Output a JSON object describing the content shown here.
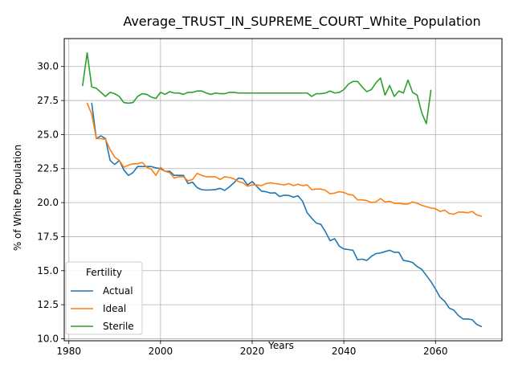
{
  "chart_data": {
    "type": "line",
    "title": "Average_TRUST_IN_SUPREME_COURT_White_Population",
    "xlabel": "Years",
    "ylabel": "% of White Population",
    "xlim": [
      1979,
      2074.5
    ],
    "ylim": [
      9.85,
      32.05
    ],
    "xticks": [
      1980,
      2000,
      2020,
      2040,
      2060
    ],
    "yticks": [
      10.0,
      12.5,
      15.0,
      17.5,
      20.0,
      22.5,
      25.0,
      27.5,
      30.0
    ],
    "grid": true,
    "legend": {
      "title": "Fertility",
      "position": "lower-left"
    },
    "series": [
      {
        "name": "Actual",
        "color": "#1f77b4",
        "x": [
          1985,
          1986,
          1987,
          1988,
          1989,
          1990,
          1991,
          1992,
          1993,
          1994,
          1995,
          1996,
          1997,
          1998,
          1999,
          2000,
          2001,
          2002,
          2003,
          2004,
          2005,
          2006,
          2007,
          2008,
          2009,
          2010,
          2011,
          2012,
          2013,
          2014,
          2015,
          2016,
          2017,
          2018,
          2019,
          2020,
          2021,
          2022,
          2023,
          2024,
          2025,
          2026,
          2027,
          2028,
          2029,
          2030,
          2031,
          2032,
          2033,
          2034,
          2035,
          2036,
          2037,
          2038,
          2039,
          2040,
          2041,
          2042,
          2043,
          2044,
          2045,
          2046,
          2047,
          2048,
          2049,
          2050,
          2051,
          2052,
          2053,
          2054,
          2055,
          2056,
          2057,
          2058,
          2059,
          2060,
          2061,
          2062,
          2063,
          2064,
          2065,
          2066,
          2067,
          2068,
          2069,
          2070
        ],
        "values": [
          27.3,
          24.7,
          24.9,
          24.7,
          23.1,
          22.8,
          23.1,
          22.4,
          22.0,
          22.2,
          22.65,
          22.65,
          22.65,
          22.65,
          22.55,
          22.5,
          22.3,
          22.3,
          22.0,
          22.0,
          22.0,
          21.4,
          21.5,
          21.1,
          20.95,
          20.92,
          20.93,
          20.96,
          21.05,
          20.9,
          21.15,
          21.45,
          21.8,
          21.75,
          21.3,
          21.55,
          21.2,
          20.85,
          20.8,
          20.7,
          20.72,
          20.45,
          20.55,
          20.52,
          20.4,
          20.5,
          20.1,
          19.25,
          18.85,
          18.5,
          18.4,
          17.85,
          17.2,
          17.35,
          16.8,
          16.6,
          16.55,
          16.5,
          15.8,
          15.85,
          15.75,
          16.05,
          16.25,
          16.3,
          16.4,
          16.5,
          16.35,
          16.35,
          15.75,
          15.7,
          15.6,
          15.3,
          15.1,
          14.65,
          14.2,
          13.65,
          13.05,
          12.75,
          12.25,
          12.1,
          11.7,
          11.45,
          11.45,
          11.4,
          11.05,
          10.9
        ]
      },
      {
        "name": "Ideal",
        "color": "#ff7f0e",
        "x": [
          1984,
          1985,
          1986,
          1987,
          1988,
          1989,
          1990,
          1991,
          1992,
          1993,
          1994,
          1995,
          1996,
          1997,
          1998,
          1999,
          2000,
          2001,
          2002,
          2003,
          2004,
          2005,
          2006,
          2007,
          2008,
          2009,
          2010,
          2011,
          2012,
          2013,
          2014,
          2015,
          2016,
          2017,
          2018,
          2019,
          2020,
          2021,
          2022,
          2023,
          2024,
          2025,
          2026,
          2027,
          2028,
          2029,
          2030,
          2031,
          2032,
          2033,
          2034,
          2035,
          2036,
          2037,
          2038,
          2039,
          2040,
          2041,
          2042,
          2043,
          2044,
          2045,
          2046,
          2047,
          2048,
          2049,
          2050,
          2051,
          2052,
          2053,
          2054,
          2055,
          2056,
          2057,
          2058,
          2059,
          2060,
          2061,
          2062,
          2063,
          2064,
          2065,
          2066,
          2067,
          2068,
          2069,
          2070
        ],
        "values": [
          27.3,
          26.5,
          24.7,
          24.7,
          24.65,
          23.9,
          23.35,
          23.1,
          22.6,
          22.75,
          22.85,
          22.85,
          22.95,
          22.6,
          22.45,
          22.0,
          22.6,
          22.3,
          22.2,
          21.8,
          21.9,
          21.9,
          21.6,
          21.7,
          22.15,
          22.0,
          21.9,
          21.9,
          21.9,
          21.7,
          21.9,
          21.85,
          21.75,
          21.55,
          21.45,
          21.2,
          21.3,
          21.3,
          21.25,
          21.4,
          21.45,
          21.4,
          21.35,
          21.3,
          21.4,
          21.25,
          21.35,
          21.25,
          21.3,
          20.95,
          21.0,
          21.0,
          20.9,
          20.65,
          20.7,
          20.8,
          20.75,
          20.6,
          20.55,
          20.2,
          20.2,
          20.15,
          20.0,
          20.05,
          20.3,
          20.05,
          20.1,
          19.95,
          19.95,
          19.9,
          19.9,
          20.05,
          19.95,
          19.8,
          19.7,
          19.6,
          19.55,
          19.35,
          19.45,
          19.2,
          19.15,
          19.3,
          19.3,
          19.25,
          19.35,
          19.1,
          19.0
        ]
      },
      {
        "name": "Sterile",
        "color": "#2ca02c",
        "x": [
          1983,
          1984,
          1985,
          1986,
          1987,
          1988,
          1989,
          1990,
          1991,
          1992,
          1993,
          1994,
          1995,
          1996,
          1997,
          1998,
          1999,
          2000,
          2001,
          2002,
          2003,
          2004,
          2005,
          2006,
          2007,
          2008,
          2009,
          2010,
          2011,
          2012,
          2013,
          2014,
          2015,
          2016,
          2017,
          2018,
          2019,
          2020,
          2021,
          2022,
          2023,
          2024,
          2025,
          2026,
          2027,
          2028,
          2029,
          2030,
          2031,
          2032,
          2033,
          2034,
          2035,
          2036,
          2037,
          2038,
          2039,
          2040,
          2041,
          2042,
          2043,
          2044,
          2045,
          2046,
          2047,
          2048,
          2049,
          2050,
          2051,
          2052,
          2053,
          2054,
          2055,
          2056,
          2057,
          2058,
          2059
        ],
        "values": [
          28.6,
          31.0,
          28.5,
          28.4,
          28.1,
          27.8,
          28.1,
          28.0,
          27.8,
          27.35,
          27.3,
          27.35,
          27.8,
          28.0,
          27.95,
          27.75,
          27.65,
          28.1,
          27.95,
          28.15,
          28.05,
          28.05,
          27.95,
          28.1,
          28.1,
          28.2,
          28.2,
          28.05,
          27.95,
          28.05,
          28.0,
          28.0,
          28.1,
          28.1,
          28.05,
          28.05,
          28.05,
          28.05,
          28.05,
          28.05,
          28.05,
          28.05,
          28.05,
          28.05,
          28.05,
          28.05,
          28.05,
          28.05,
          28.05,
          28.05,
          27.8,
          28.0,
          28.0,
          28.05,
          28.2,
          28.05,
          28.1,
          28.3,
          28.7,
          28.9,
          28.9,
          28.5,
          28.15,
          28.3,
          28.8,
          29.15,
          27.9,
          28.6,
          27.8,
          28.2,
          28.05,
          29.0,
          28.1,
          27.9,
          26.6,
          25.8,
          28.25
        ]
      }
    ]
  }
}
